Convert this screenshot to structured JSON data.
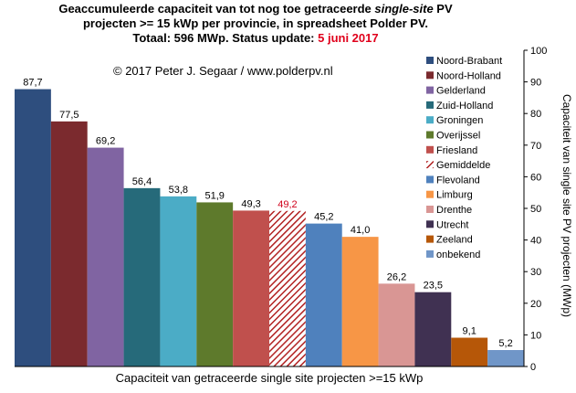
{
  "title": {
    "line1_a": "Geaccumuleerde capaciteit van tot nog toe getraceerde ",
    "line1_italic": "single-site",
    "line1_b": " PV",
    "line2": "projecten >= 15 kWp per provincie, in spreadsheet Polder PV.",
    "line3_a": "Totaal: 596 MWp. Status update: ",
    "line3_date": "5 juni 2017"
  },
  "colors": {
    "date_red": "#e0001b",
    "average_label_red": "#d0021b",
    "average_hatch": "#b22222"
  },
  "chart_data": {
    "type": "bar",
    "copyright": "© 2017 Peter J. Segaar / www.polderpv.nl",
    "xlabel": "Capaciteit van getraceerde single site projecten >=15 kWp",
    "ylabel": "Capaciteit van single site PV projecten (MWp)",
    "ylim": [
      0,
      100
    ],
    "yticks": [
      "0",
      "10",
      "20",
      "30",
      "40",
      "50",
      "60",
      "70",
      "80",
      "90",
      "100"
    ],
    "legend_position": "top-right",
    "series": [
      {
        "name": "Noord-Brabant",
        "value": 87.7,
        "label": "87,7",
        "color": "#2e4e7e"
      },
      {
        "name": "Noord-Holland",
        "value": 77.5,
        "label": "77,5",
        "color": "#7b2a2e"
      },
      {
        "name": "Gelderland",
        "value": 69.2,
        "label": "69,2",
        "color": "#8064a2"
      },
      {
        "name": "Zuid-Holland",
        "value": 56.4,
        "label": "56,4",
        "color": "#266a7a"
      },
      {
        "name": "Groningen",
        "value": 53.8,
        "label": "53,8",
        "color": "#4bacc6"
      },
      {
        "name": "Overijssel",
        "value": 51.9,
        "label": "51,9",
        "color": "#5e7a2c"
      },
      {
        "name": "Friesland",
        "value": 49.3,
        "label": "49,3",
        "color": "#c0504d"
      },
      {
        "name": "Gemiddelde",
        "value": 49.2,
        "label": "49,2",
        "color": "#b22222",
        "hatched": true
      },
      {
        "name": "Flevoland",
        "value": 45.2,
        "label": "45,2",
        "color": "#4f81bd"
      },
      {
        "name": "Limburg",
        "value": 41.0,
        "label": "41,0",
        "color": "#f79646"
      },
      {
        "name": "Drenthe",
        "value": 26.2,
        "label": "26,2",
        "color": "#d99694"
      },
      {
        "name": "Utrecht",
        "value": 23.5,
        "label": "23,5",
        "color": "#403152"
      },
      {
        "name": "Zeeland",
        "value": 9.1,
        "label": "9,1",
        "color": "#b65708"
      },
      {
        "name": "onbekend",
        "value": 5.2,
        "label": "5,2",
        "color": "#7096c8"
      }
    ]
  }
}
